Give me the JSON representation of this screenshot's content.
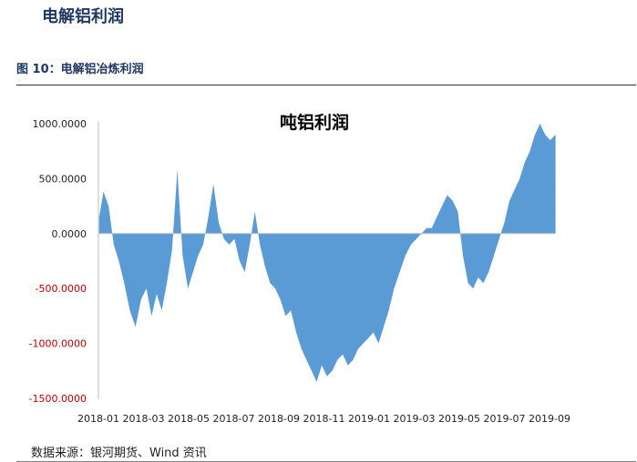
{
  "section_heading": "电解铝利润",
  "figure_caption": "图 10：电解铝冶炼利润",
  "source_note": "数据来源：银河期货、Wind 资讯",
  "colors": {
    "area": "#5b9bd5",
    "negative_tick": "#c00000",
    "positive_tick": "#222222"
  },
  "chart_data": {
    "type": "area",
    "title": "吨铝利润",
    "xlabel": "",
    "ylabel": "",
    "ylim": [
      -1500,
      1000
    ],
    "y_ticks": [
      {
        "value": 1000,
        "label": "1000.0000"
      },
      {
        "value": 500,
        "label": "500.0000"
      },
      {
        "value": 0,
        "label": "0.0000"
      },
      {
        "value": -500,
        "label": "-500.0000"
      },
      {
        "value": -1000,
        "label": "-1000.0000"
      },
      {
        "value": -1500,
        "label": "-1500.0000"
      }
    ],
    "x_ticks": [
      "2018-01",
      "2018-03",
      "2018-05",
      "2018-07",
      "2018-09",
      "2018-11",
      "2019-01",
      "2019-03",
      "2019-05",
      "2019-07",
      "2019-09"
    ],
    "grid": false,
    "legend": "none",
    "series": [
      {
        "x": [
          "2018-01-02",
          "2018-01-08",
          "2018-01-15",
          "2018-01-22",
          "2018-01-29",
          "2018-02-05",
          "2018-02-12",
          "2018-02-19",
          "2018-02-26",
          "2018-03-05",
          "2018-03-12",
          "2018-03-19",
          "2018-03-26",
          "2018-04-02",
          "2018-04-09",
          "2018-04-16",
          "2018-04-23",
          "2018-04-30",
          "2018-05-07",
          "2018-05-14",
          "2018-05-21",
          "2018-05-28",
          "2018-06-04",
          "2018-06-11",
          "2018-06-18",
          "2018-06-25",
          "2018-07-02",
          "2018-07-09",
          "2018-07-16",
          "2018-07-23",
          "2018-07-30",
          "2018-08-06",
          "2018-08-13",
          "2018-08-20",
          "2018-08-27",
          "2018-09-03",
          "2018-09-10",
          "2018-09-17",
          "2018-09-24",
          "2018-10-01",
          "2018-10-08",
          "2018-10-15",
          "2018-10-22",
          "2018-10-29",
          "2018-11-05",
          "2018-11-12",
          "2018-11-19",
          "2018-11-26",
          "2018-12-03",
          "2018-12-10",
          "2018-12-17",
          "2018-12-24",
          "2018-12-31",
          "2019-01-07",
          "2019-01-14",
          "2019-01-21",
          "2019-01-28",
          "2019-02-04",
          "2019-02-11",
          "2019-02-18",
          "2019-02-25",
          "2019-03-04",
          "2019-03-11",
          "2019-03-18",
          "2019-03-25",
          "2019-04-01",
          "2019-04-08",
          "2019-04-15",
          "2019-04-22",
          "2019-04-29",
          "2019-05-06",
          "2019-05-13",
          "2019-05-20",
          "2019-05-27",
          "2019-06-03",
          "2019-06-10",
          "2019-06-17",
          "2019-06-24",
          "2019-07-01",
          "2019-07-08",
          "2019-07-15",
          "2019-07-22",
          "2019-07-29",
          "2019-08-05",
          "2019-08-12",
          "2019-08-19",
          "2019-08-26",
          "2019-09-02",
          "2019-09-09"
        ],
        "values": [
          150,
          380,
          250,
          -100,
          -250,
          -450,
          -700,
          -850,
          -600,
          -500,
          -750,
          -550,
          -700,
          -450,
          -150,
          580,
          -200,
          -500,
          -350,
          -200,
          -100,
          150,
          450,
          100,
          -50,
          -100,
          -50,
          -250,
          -350,
          -100,
          200,
          -100,
          -300,
          -450,
          -500,
          -600,
          -750,
          -700,
          -900,
          -1050,
          -1150,
          -1250,
          -1350,
          -1200,
          -1300,
          -1250,
          -1150,
          -1100,
          -1200,
          -1150,
          -1050,
          -1000,
          -950,
          -900,
          -1000,
          -850,
          -700,
          -500,
          -350,
          -200,
          -100,
          -50,
          0,
          50,
          50,
          150,
          250,
          350,
          300,
          200,
          -200,
          -450,
          -500,
          -400,
          -450,
          -350,
          -200,
          -50,
          100,
          300,
          400,
          500,
          650,
          750,
          900,
          1000,
          900,
          850,
          900
        ]
      }
    ]
  }
}
